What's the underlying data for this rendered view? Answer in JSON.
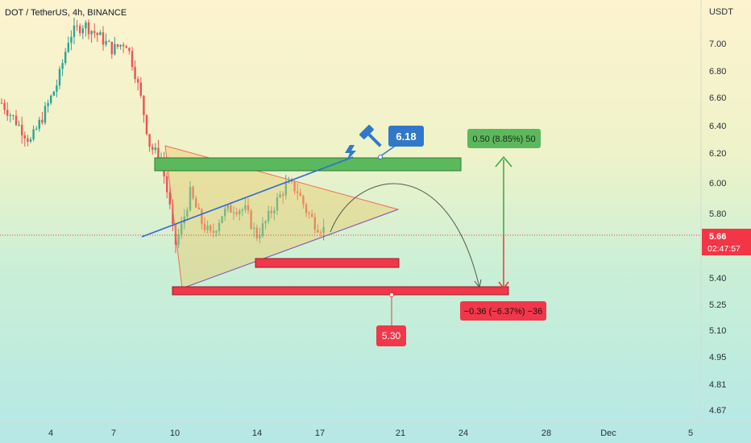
{
  "chart_data": {
    "type": "candlestick",
    "title": "DOT / TetherUS, 4h, BINANCE",
    "ylabel": "USDT",
    "y_ticks": [
      "7.00",
      "6.80",
      "6.60",
      "6.40",
      "6.20",
      "6.00",
      "5.80",
      "5.40",
      "5.25",
      "5.10",
      "4.95",
      "4.81",
      "4.67"
    ],
    "x_ticks": [
      "4",
      "7",
      "10",
      "14",
      "17",
      "21",
      "24",
      "28",
      "Dec",
      "5"
    ],
    "current_price": "5.66",
    "countdown": "02:47:57",
    "annotations": {
      "target_callout": "6.18",
      "support_callout": "5.30",
      "long_position": "0.50 (8.85%) 50",
      "short_position": "−0.36 (−6.37%) −36"
    },
    "colors": {
      "up": "#26a69a",
      "down": "#ef5350",
      "green_zone": "#5cb85c",
      "red_zone": "#f0384a",
      "trend_line": "#2f6bd8",
      "callout_blue": "#3179c8",
      "price_badge": "#f23645"
    }
  }
}
